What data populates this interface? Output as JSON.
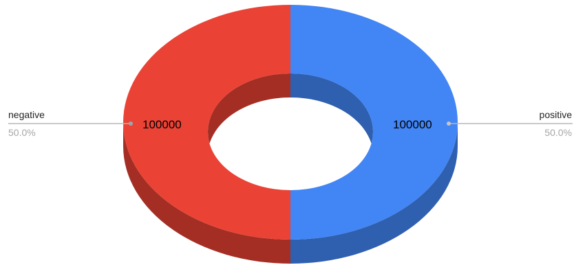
{
  "chart_data": {
    "type": "pie",
    "style": "3d-donut",
    "title": "",
    "legend": "none",
    "slices": [
      {
        "name": "positive",
        "value": 100000,
        "value_label": "100000",
        "percent_label": "50.0%",
        "color": "#4285F4",
        "shade": "#2F5FAF"
      },
      {
        "name": "negative",
        "value": 100000,
        "value_label": "100000",
        "percent_label": "50.0%",
        "color": "#EA4335",
        "shade": "#A52E24"
      }
    ]
  }
}
